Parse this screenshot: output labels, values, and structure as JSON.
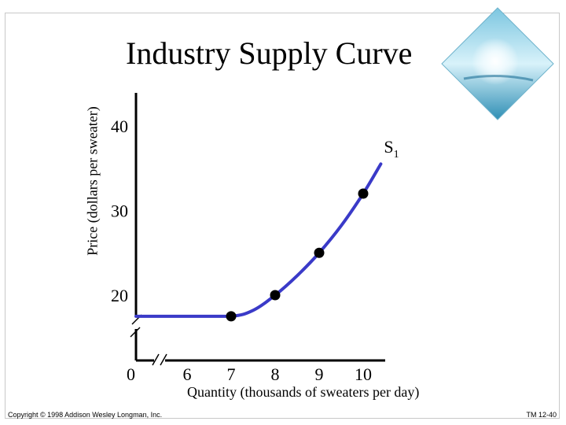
{
  "slide": {
    "copyright": "Copyright © 1998 Addison Wesley Longman, Inc.",
    "slide_number": "TM 12-40"
  },
  "colors": {
    "curve": "#3a3ac8",
    "axis": "#000000",
    "deco_blue": "#3fa6c6"
  },
  "chart_data": {
    "type": "line",
    "title": "Industry Supply Curve",
    "xlabel": "Quantity (thousands of sweaters per day)",
    "ylabel": "Price (dollars per sweater)",
    "x_ticks": [
      6,
      7,
      8,
      9,
      10
    ],
    "x_origin_label": "0",
    "y_ticks": [
      20,
      30,
      40
    ],
    "xlim": [
      6,
      10.7
    ],
    "ylim": [
      17,
      43
    ],
    "axis_breaks": [
      "x",
      "y"
    ],
    "series": [
      {
        "name": "S",
        "label": "S",
        "label_subscript": "1",
        "curve": [
          {
            "x": 6.0,
            "y": 17.5
          },
          {
            "x": 7.0,
            "y": 17.5
          },
          {
            "x": 7.5,
            "y": 18.2
          },
          {
            "x": 8.0,
            "y": 20.0
          },
          {
            "x": 8.5,
            "y": 22.3
          },
          {
            "x": 9.0,
            "y": 25.0
          },
          {
            "x": 9.5,
            "y": 28.2
          },
          {
            "x": 10.0,
            "y": 32.0
          },
          {
            "x": 10.4,
            "y": 35.5
          }
        ],
        "points": [
          {
            "x": 7,
            "y": 17.5
          },
          {
            "x": 8,
            "y": 20
          },
          {
            "x": 9,
            "y": 25
          },
          {
            "x": 10,
            "y": 32
          }
        ]
      }
    ]
  }
}
